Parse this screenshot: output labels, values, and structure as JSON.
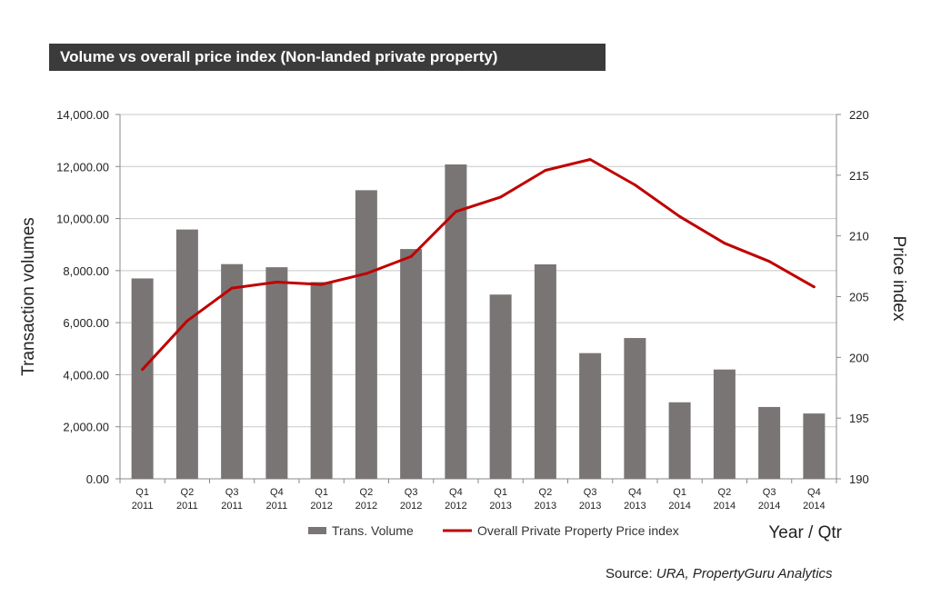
{
  "title": "Volume vs overall price index (Non-landed private property)",
  "source_label": "Source:",
  "source_text": "URA, PropertyGuru Analytics",
  "colors": {
    "bar": "#7a7575",
    "line": "#c00000",
    "grid": "#c8c8c8",
    "title_bg": "#3b3b3b"
  },
  "chart_data": {
    "type": "bar",
    "title": "Volume vs overall price index (Non-landed private property)",
    "categories": [
      [
        "Q1",
        "2011"
      ],
      [
        "Q2",
        "2011"
      ],
      [
        "Q3",
        "2011"
      ],
      [
        "Q4",
        "2011"
      ],
      [
        "Q1",
        "2012"
      ],
      [
        "Q2",
        "2012"
      ],
      [
        "Q3",
        "2012"
      ],
      [
        "Q4",
        "2012"
      ],
      [
        "Q1",
        "2013"
      ],
      [
        "Q2",
        "2013"
      ],
      [
        "Q3",
        "2013"
      ],
      [
        "Q4",
        "2013"
      ],
      [
        "Q1",
        "2014"
      ],
      [
        "Q2",
        "2014"
      ],
      [
        "Q3",
        "2014"
      ],
      [
        "Q4",
        "2014"
      ]
    ],
    "series": [
      {
        "name": "Trans. Volume",
        "type": "bar",
        "axis": "left",
        "values": [
          7700,
          9580,
          8250,
          8130,
          7560,
          11090,
          8830,
          12080,
          7080,
          8240,
          4830,
          5410,
          2940,
          4200,
          2760,
          2510
        ]
      },
      {
        "name": "Overall Private Property Price index",
        "type": "line",
        "axis": "right",
        "values": [
          199.0,
          203.0,
          205.7,
          206.2,
          206.0,
          206.9,
          208.3,
          212.0,
          213.2,
          215.4,
          216.3,
          214.2,
          211.6,
          209.4,
          207.9,
          205.8
        ]
      }
    ],
    "xlabel": "Year / Qtr",
    "ylabel": "Transaction volumes",
    "y2label": "Price index",
    "ylim": [
      0,
      14000
    ],
    "y2lim": [
      190,
      220
    ],
    "yticks": [
      "0.00",
      "2,000.00",
      "4,000.00",
      "6,000.00",
      "8,000.00",
      "10,000.00",
      "12,000.00",
      "14,000.00"
    ],
    "y2ticks": [
      "190",
      "195",
      "200",
      "205",
      "210",
      "215",
      "220"
    ],
    "grid": true,
    "legend_position": "bottom"
  }
}
